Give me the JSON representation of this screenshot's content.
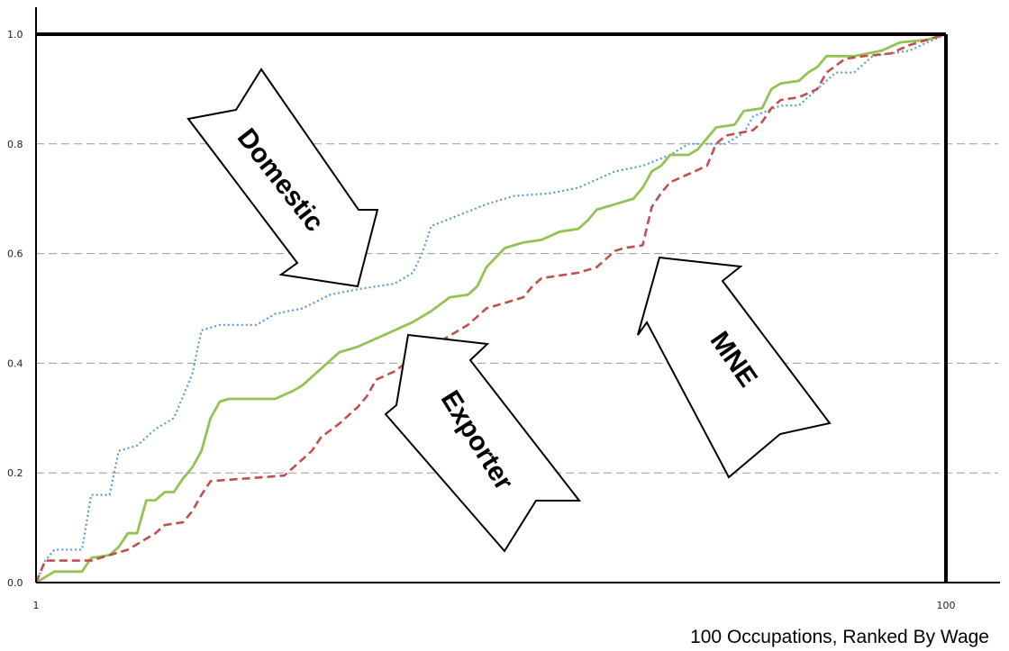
{
  "chart_data": {
    "type": "line",
    "xlabel": "100 Occupations, Ranked By Wage",
    "ylabel": "",
    "xlim": [
      1,
      100
    ],
    "ylim": [
      0,
      1.0
    ],
    "x_ticks": [
      "1",
      "100"
    ],
    "y_ticks": [
      "0.0",
      "0.2",
      "0.4",
      "0.6",
      "0.8",
      "1.0"
    ],
    "grid": "horizontal dashed",
    "series": [
      {
        "name": "Domestic",
        "style": "dotted",
        "color": "#5b9bd5",
        "points": [
          [
            1,
            0
          ],
          [
            2,
            0.04
          ],
          [
            3,
            0.06
          ],
          [
            6,
            0.06
          ],
          [
            7,
            0.16
          ],
          [
            9,
            0.16
          ],
          [
            10,
            0.24
          ],
          [
            12,
            0.25
          ],
          [
            14,
            0.28
          ],
          [
            16,
            0.3
          ],
          [
            18,
            0.38
          ],
          [
            19,
            0.46
          ],
          [
            21,
            0.47
          ],
          [
            25,
            0.47
          ],
          [
            27,
            0.49
          ],
          [
            30,
            0.5
          ],
          [
            33,
            0.525
          ],
          [
            36,
            0.535
          ],
          [
            40,
            0.545
          ],
          [
            42,
            0.565
          ],
          [
            43,
            0.6
          ],
          [
            44,
            0.65
          ],
          [
            47,
            0.67
          ],
          [
            50,
            0.69
          ],
          [
            53,
            0.705
          ],
          [
            57,
            0.71
          ],
          [
            60,
            0.72
          ],
          [
            64,
            0.75
          ],
          [
            67,
            0.76
          ],
          [
            70,
            0.78
          ],
          [
            72,
            0.8
          ],
          [
            76,
            0.8
          ],
          [
            78,
            0.82
          ],
          [
            79,
            0.85
          ],
          [
            82,
            0.87
          ],
          [
            84,
            0.87
          ],
          [
            86,
            0.9
          ],
          [
            88,
            0.93
          ],
          [
            90,
            0.93
          ],
          [
            92,
            0.96
          ],
          [
            94,
            0.965
          ],
          [
            96,
            0.97
          ],
          [
            98,
            0.985
          ],
          [
            100,
            1.0
          ]
        ]
      },
      {
        "name": "Exporter",
        "style": "solid",
        "color": "#92c353",
        "points": [
          [
            1,
            0
          ],
          [
            2,
            0.01
          ],
          [
            3,
            0.02
          ],
          [
            6,
            0.02
          ],
          [
            7,
            0.045
          ],
          [
            9,
            0.05
          ],
          [
            10,
            0.065
          ],
          [
            11,
            0.09
          ],
          [
            12,
            0.09
          ],
          [
            13,
            0.15
          ],
          [
            14,
            0.15
          ],
          [
            15,
            0.165
          ],
          [
            16,
            0.165
          ],
          [
            17,
            0.19
          ],
          [
            18,
            0.21
          ],
          [
            19,
            0.24
          ],
          [
            20,
            0.3
          ],
          [
            21,
            0.33
          ],
          [
            22,
            0.335
          ],
          [
            27,
            0.335
          ],
          [
            29,
            0.35
          ],
          [
            30,
            0.36
          ],
          [
            32,
            0.39
          ],
          [
            34,
            0.42
          ],
          [
            36,
            0.43
          ],
          [
            38,
            0.445
          ],
          [
            40,
            0.46
          ],
          [
            42,
            0.475
          ],
          [
            44,
            0.495
          ],
          [
            46,
            0.52
          ],
          [
            48,
            0.525
          ],
          [
            49,
            0.54
          ],
          [
            50,
            0.575
          ],
          [
            52,
            0.61
          ],
          [
            54,
            0.62
          ],
          [
            56,
            0.625
          ],
          [
            58,
            0.64
          ],
          [
            60,
            0.645
          ],
          [
            61,
            0.66
          ],
          [
            62,
            0.68
          ],
          [
            64,
            0.69
          ],
          [
            66,
            0.7
          ],
          [
            67,
            0.72
          ],
          [
            68,
            0.75
          ],
          [
            69,
            0.76
          ],
          [
            70,
            0.78
          ],
          [
            72,
            0.78
          ],
          [
            73,
            0.79
          ],
          [
            74,
            0.81
          ],
          [
            75,
            0.83
          ],
          [
            77,
            0.835
          ],
          [
            78,
            0.86
          ],
          [
            80,
            0.865
          ],
          [
            81,
            0.9
          ],
          [
            82,
            0.91
          ],
          [
            84,
            0.915
          ],
          [
            85,
            0.93
          ],
          [
            86,
            0.94
          ],
          [
            87,
            0.96
          ],
          [
            90,
            0.96
          ],
          [
            93,
            0.97
          ],
          [
            95,
            0.985
          ],
          [
            98,
            0.99
          ],
          [
            100,
            1.0
          ]
        ]
      },
      {
        "name": "MNE",
        "style": "dashed",
        "color": "#c0504d",
        "points": [
          [
            1,
            0
          ],
          [
            2,
            0.04
          ],
          [
            3,
            0.04
          ],
          [
            7,
            0.04
          ],
          [
            9,
            0.05
          ],
          [
            11,
            0.06
          ],
          [
            12,
            0.07
          ],
          [
            13,
            0.08
          ],
          [
            14,
            0.09
          ],
          [
            15,
            0.105
          ],
          [
            17,
            0.11
          ],
          [
            18,
            0.13
          ],
          [
            19,
            0.16
          ],
          [
            20,
            0.185
          ],
          [
            24,
            0.19
          ],
          [
            28,
            0.195
          ],
          [
            29,
            0.21
          ],
          [
            31,
            0.24
          ],
          [
            32,
            0.265
          ],
          [
            34,
            0.29
          ],
          [
            36,
            0.32
          ],
          [
            37,
            0.34
          ],
          [
            38,
            0.37
          ],
          [
            40,
            0.385
          ],
          [
            42,
            0.41
          ],
          [
            44,
            0.43
          ],
          [
            46,
            0.45
          ],
          [
            48,
            0.47
          ],
          [
            50,
            0.5
          ],
          [
            52,
            0.51
          ],
          [
            54,
            0.52
          ],
          [
            55,
            0.54
          ],
          [
            56,
            0.555
          ],
          [
            60,
            0.565
          ],
          [
            62,
            0.575
          ],
          [
            64,
            0.605
          ],
          [
            65,
            0.61
          ],
          [
            67,
            0.615
          ],
          [
            68,
            0.685
          ],
          [
            69,
            0.71
          ],
          [
            70,
            0.73
          ],
          [
            72,
            0.745
          ],
          [
            74,
            0.76
          ],
          [
            75,
            0.8
          ],
          [
            76,
            0.815
          ],
          [
            79,
            0.825
          ],
          [
            80,
            0.84
          ],
          [
            81,
            0.865
          ],
          [
            82,
            0.88
          ],
          [
            84,
            0.885
          ],
          [
            86,
            0.9
          ],
          [
            87,
            0.93
          ],
          [
            89,
            0.955
          ],
          [
            91,
            0.96
          ],
          [
            94,
            0.965
          ],
          [
            96,
            0.98
          ],
          [
            98,
            0.99
          ],
          [
            100,
            1.0
          ]
        ]
      }
    ],
    "annotations": [
      "Domestic",
      "Exporter",
      "MNE"
    ]
  }
}
